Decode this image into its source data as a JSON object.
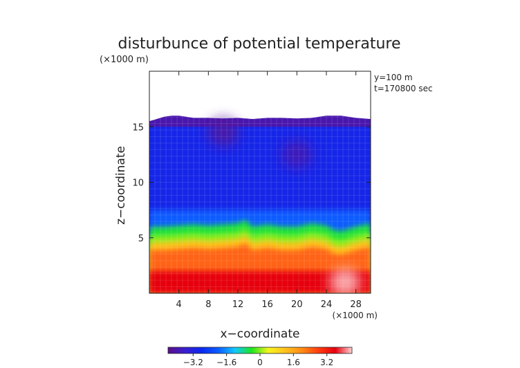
{
  "chart_data": {
    "type": "heatmap",
    "title": "disturbunce of potential temperature",
    "title_units": "(×1000 m)",
    "annotations": [
      "y=100 m",
      "t=170800 sec"
    ],
    "xlabel": "x−coordinate",
    "xlabel_units": "(×1000 m)",
    "ylabel": "z−coordinate",
    "xlim": [
      0,
      30
    ],
    "ylim": [
      0,
      20
    ],
    "x_ticks": [
      4,
      8,
      12,
      16,
      20,
      24,
      28
    ],
    "y_ticks": [
      5,
      10,
      15
    ],
    "colorbar": {
      "vmin": -4.4,
      "vmax": 4.4,
      "ticks": [
        -3.2,
        -1.6,
        0,
        1.6,
        3.2
      ],
      "tick_labels": [
        "−3.2",
        "−1.6",
        "0",
        "1.6",
        "3.2"
      ],
      "colors": [
        "#5a0f8a",
        "#3a1ecf",
        "#0a28f0",
        "#0a5cff",
        "#12c8ff",
        "#1ee61e",
        "#f5f51e",
        "#ffc31e",
        "#ff8c14",
        "#ff3c0f",
        "#e6000f",
        "#ffd2d2"
      ]
    },
    "cloud_top_profile": {
      "x": [
        0,
        1,
        2,
        3,
        4,
        5,
        6,
        8,
        10,
        12,
        14,
        16,
        18,
        20,
        22,
        24,
        26,
        27,
        28,
        29,
        30
      ],
      "z": [
        15.5,
        15.7,
        15.9,
        16.0,
        16.0,
        15.9,
        15.8,
        15.8,
        15.75,
        15.8,
        15.7,
        15.8,
        15.8,
        15.75,
        15.8,
        16.0,
        16.0,
        15.9,
        15.8,
        15.75,
        15.7
      ]
    },
    "layers": [
      {
        "name": "upper-purple-band",
        "z_bottom": 15.0,
        "value": -4.0
      },
      {
        "name": "upper-blue",
        "z_bottom": 7.5,
        "value": -3.0
      },
      {
        "name": "mid-blue",
        "z_bottom": 6.0,
        "value": -2.0
      },
      {
        "name": "cyan-transition",
        "z_bottom": 5.2,
        "value": -0.5
      },
      {
        "name": "green-band",
        "z_bottom": 4.6,
        "value": 0.0
      },
      {
        "name": "yellow-band",
        "z_bottom": 3.9,
        "value": 1.2
      },
      {
        "name": "orange",
        "z_bottom": 2.0,
        "value": 2.4
      },
      {
        "name": "red-base",
        "z_bottom": 0.0,
        "value": 3.6
      }
    ],
    "interface_profile": {
      "x": [
        0,
        2,
        4,
        6,
        8,
        10,
        12,
        13,
        14,
        16,
        18,
        20,
        22,
        24,
        25,
        26,
        28,
        30
      ],
      "z": [
        5.0,
        5.0,
        5.1,
        5.2,
        5.1,
        5.2,
        5.3,
        5.6,
        5.0,
        5.2,
        5.0,
        5.0,
        5.3,
        5.1,
        4.7,
        4.6,
        5.0,
        5.3
      ]
    },
    "features": [
      {
        "name": "red-hot-spot",
        "x": 26.5,
        "z": 1.0,
        "value": 4.4
      },
      {
        "name": "purple-blob-upper",
        "x": 10,
        "z": 14.5,
        "value": -4.2
      },
      {
        "name": "purple-blob-right",
        "x": 20,
        "z": 12.5,
        "value": -4.0
      }
    ]
  }
}
